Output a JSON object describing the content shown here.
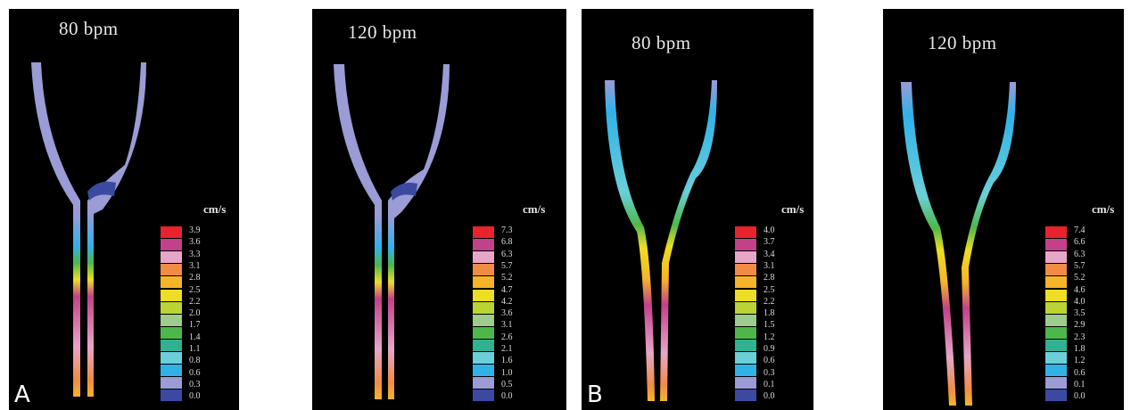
{
  "legend_colors": [
    "#e8232d",
    "#c2418a",
    "#e6a6c7",
    "#f08c45",
    "#f6b428",
    "#eedd25",
    "#b9d433",
    "#9dcc8c",
    "#4cb84a",
    "#32b192",
    "#6bcfd9",
    "#2fb2e8",
    "#9b9bd6",
    "#3b4aa0"
  ],
  "panels": [
    {
      "id": "A1",
      "title": "80 bpm",
      "unit": "cm/s",
      "letter": "A",
      "ticks": [
        "3.9",
        "3.6",
        "3.3",
        "3.1",
        "2.8",
        "2.5",
        "2.2",
        "2.0",
        "1.7",
        "1.4",
        "1.1",
        "0.8",
        "0.6",
        "0.3",
        "0.0"
      ]
    },
    {
      "id": "A2",
      "title": "120 bpm",
      "unit": "cm/s",
      "letter": "",
      "ticks": [
        "7.3",
        "6.8",
        "6.3",
        "5.7",
        "5.2",
        "4.7",
        "4.2",
        "3.6",
        "3.1",
        "2.6",
        "2.1",
        "1.6",
        "1.0",
        "0.5",
        "0.0"
      ]
    },
    {
      "id": "B1",
      "title": "80 bpm",
      "unit": "cm/s",
      "letter": "B",
      "ticks": [
        "4.0",
        "3.7",
        "3.4",
        "3.1",
        "2.8",
        "2.5",
        "2.2",
        "1.8",
        "1.5",
        "1.2",
        "0.9",
        "0.6",
        "0.3",
        "0.1",
        "0.0"
      ]
    },
    {
      "id": "B2",
      "title": "120 bpm",
      "unit": "cm/s",
      "letter": "",
      "ticks": [
        "7.4",
        "6.6",
        "6.3",
        "5.7",
        "5.2",
        "4.6",
        "4.0",
        "3.5",
        "2.9",
        "2.3",
        "1.8",
        "1.2",
        "0.6",
        "0.1",
        "0.0"
      ]
    }
  ]
}
